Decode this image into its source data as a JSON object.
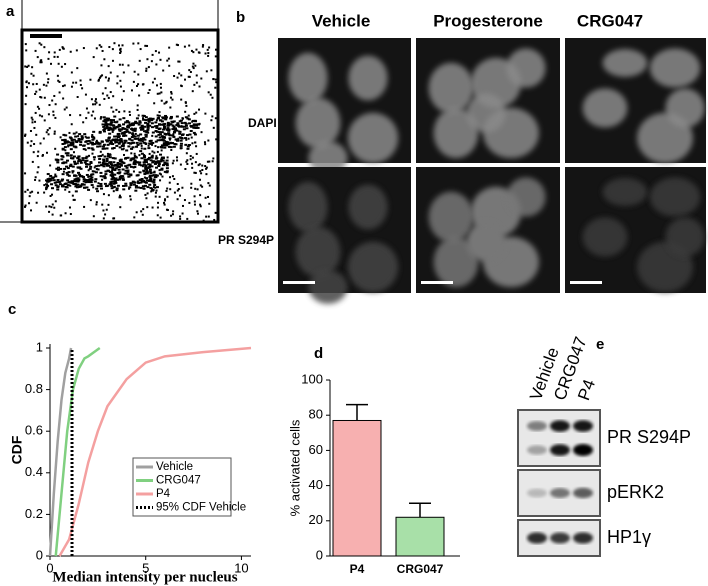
{
  "panel_labels": [
    "a",
    "b",
    "c",
    "d",
    "e"
  ],
  "images": {
    "columns": [
      "Vehicle",
      "Progesterone",
      "CRG047"
    ],
    "rows": [
      "DAPI",
      "PR S294P"
    ]
  },
  "chart_data": [
    {
      "type": "line",
      "xlabel": "Median intensity per nucleus",
      "ylabel": "CDF",
      "xlim": [
        0,
        10.5
      ],
      "ylim": [
        0,
        1
      ],
      "xticks": [
        0,
        5,
        10
      ],
      "yticks": [
        0,
        0.2,
        0.4,
        0.6,
        0.8,
        1
      ],
      "legend": "lower right",
      "series": [
        {
          "name": "Vehicle",
          "color": "#a0a0a0",
          "x": [
            0,
            0.2,
            0.4,
            0.6,
            0.8,
            1.0,
            1.1
          ],
          "values": [
            0,
            0.3,
            0.55,
            0.75,
            0.88,
            0.95,
            1
          ]
        },
        {
          "name": "CRG047",
          "color": "#80d080",
          "x": [
            0.3,
            0.6,
            0.9,
            1.2,
            1.5,
            1.8,
            2.0,
            2.3,
            2.6
          ],
          "values": [
            0,
            0.3,
            0.6,
            0.8,
            0.9,
            0.95,
            0.96,
            0.98,
            1
          ]
        },
        {
          "name": "P4",
          "color": "#f4a0a0",
          "x": [
            0.5,
            1,
            1.5,
            2,
            2.5,
            3,
            4,
            5,
            6,
            8,
            10.5
          ],
          "values": [
            0,
            0.08,
            0.25,
            0.45,
            0.6,
            0.72,
            0.85,
            0.93,
            0.96,
            0.98,
            1
          ]
        }
      ],
      "reference": {
        "name": "95% CDF Vehicle",
        "x": 1.15
      }
    },
    {
      "type": "bar",
      "ylabel": "% activated cells",
      "categories": [
        "P4",
        "CRG047"
      ],
      "values": [
        77,
        22
      ],
      "errors": [
        9,
        8
      ],
      "colors": [
        "#f7b0b0",
        "#a8e0a8"
      ],
      "ylim": [
        0,
        100
      ],
      "yticks": [
        0,
        20,
        40,
        60,
        80,
        100
      ]
    }
  ],
  "blot": {
    "lanes": [
      "Vehicle",
      "CRG047",
      "P4"
    ],
    "bands": [
      "PR S294P",
      "pERK2",
      "HP1γ"
    ]
  }
}
